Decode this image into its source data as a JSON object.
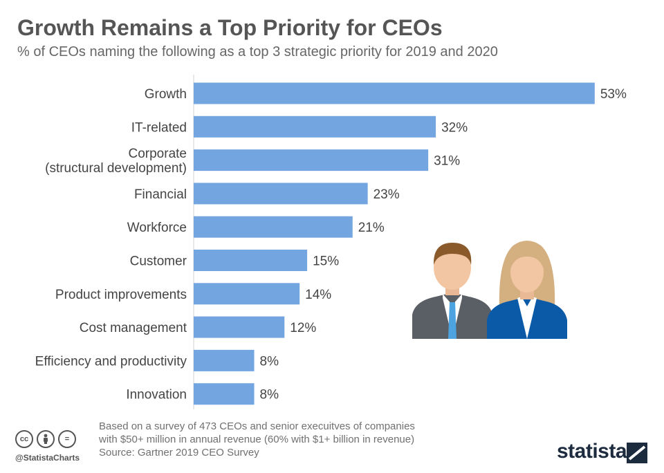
{
  "chart_data": {
    "type": "bar",
    "orientation": "horizontal",
    "title": "Growth Remains a Top Priority for CEOs",
    "subtitle": "% of CEOs naming the following as a top 3 strategic priority for 2019 and 2020",
    "categories": [
      "Growth",
      "IT-related",
      "Corporate (structural development)",
      "Financial",
      "Workforce",
      "Customer",
      "Product improvements",
      "Cost management",
      "Efficiency and productivity",
      "Innovation"
    ],
    "category_lines": [
      [
        "Growth"
      ],
      [
        "IT-related"
      ],
      [
        "Corporate",
        "(structural development)"
      ],
      [
        "Financial"
      ],
      [
        "Workforce"
      ],
      [
        "Customer"
      ],
      [
        "Product improvements"
      ],
      [
        "Cost management"
      ],
      [
        "Efficiency and productivity"
      ],
      [
        "Innovation"
      ]
    ],
    "values": [
      53,
      32,
      31,
      23,
      21,
      15,
      14,
      12,
      8,
      8
    ],
    "value_labels": [
      "53%",
      "32%",
      "31%",
      "23%",
      "21%",
      "15%",
      "14%",
      "12%",
      "8%",
      "8%"
    ],
    "xlim": [
      0,
      60
    ],
    "xlabel": "",
    "ylabel": "",
    "grid": false,
    "bar_color": "#73a5e1"
  },
  "footer": {
    "note_line1": "Based on a survey of 473 CEOs and senior execuitves of companies",
    "note_line2": "with $50+ million in annual revenue (60% with $1+ billion in revenue)",
    "source": "Source: Gartner 2019 CEO Survey"
  },
  "branding": {
    "handle": "@StatistaCharts",
    "logo_text": "statista",
    "cc_icons": [
      "cc",
      "by",
      "="
    ]
  },
  "colors": {
    "bar": "#73a5e1",
    "brand": "#1d2b3e"
  }
}
